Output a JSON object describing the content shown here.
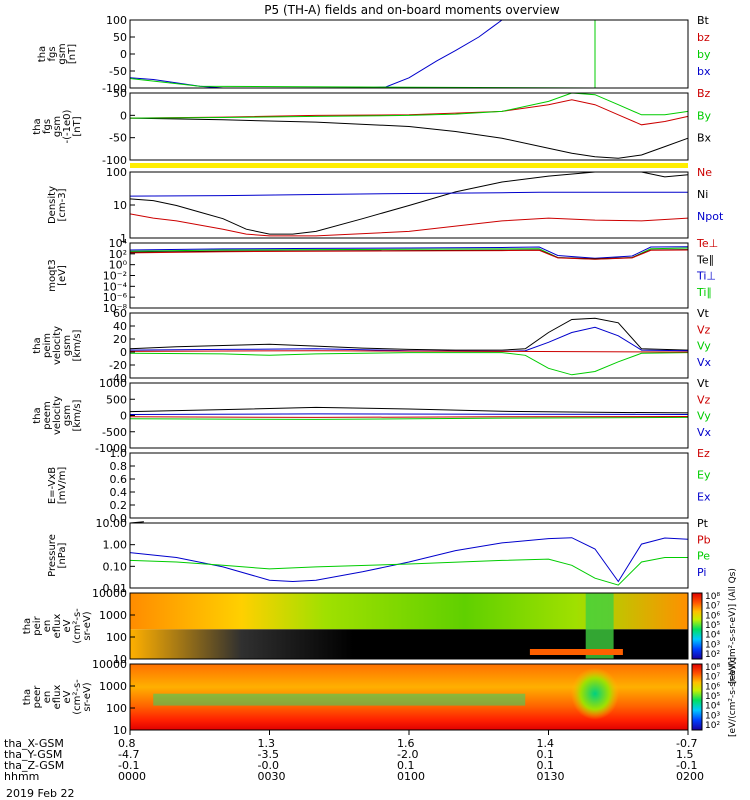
{
  "title": "P5 (TH-A) fields and on-board moments overview",
  "date_label": "2019 Feb 22",
  "colors": {
    "black": "#000000",
    "red": "#cc0000",
    "green": "#00cc00",
    "blue": "#0000cc",
    "yellow": "#ffee00"
  },
  "chart_data": [
    {
      "type": "line",
      "ylabel": [
        "tha",
        "fgs",
        "gsm",
        "[nT]"
      ],
      "ylim": [
        -100,
        100
      ],
      "yticks": [
        "100",
        "50",
        "0",
        "-50",
        "-100"
      ],
      "legend": [
        {
          "name": "Bt",
          "color": "black"
        },
        {
          "name": "bz",
          "color": "red"
        },
        {
          "name": "by",
          "color": "green"
        },
        {
          "name": "bx",
          "color": "blue"
        }
      ],
      "series": [
        {
          "name": "bx",
          "color": "blue",
          "x": [
            0,
            5,
            15,
            20,
            30,
            40,
            50,
            55,
            60,
            66,
            70,
            75,
            78,
            80,
            85,
            90,
            100,
            106,
            110,
            113
          ],
          "y": [
            -70,
            -75,
            -95,
            -100,
            -100,
            -100,
            -100,
            -97,
            -70,
            -20,
            10,
            50,
            80,
            100,
            100,
            100,
            100,
            100,
            100,
            100
          ]
        },
        {
          "name": "by",
          "color": "green",
          "x": [
            0,
            15,
            100,
            100,
            120,
            120
          ],
          "y": [
            -72,
            -95,
            -100,
            100,
            100,
            100
          ]
        },
        {
          "name": "Bt",
          "color": "black",
          "x": [
            0,
            120
          ],
          "y": [
            -100,
            -100
          ]
        }
      ]
    },
    {
      "type": "line",
      "ylabel": [
        "tha",
        "fgs",
        "gsm",
        "-(-1e0)",
        "[nT]"
      ],
      "ylim": [
        -125,
        75
      ],
      "yticks": [
        "50",
        "0",
        "-50",
        "-100"
      ],
      "legend": [
        {
          "name": "Bz",
          "color": "red"
        },
        {
          "name": "By",
          "color": "green"
        },
        {
          "name": "Bx",
          "color": "black"
        }
      ],
      "series": [
        {
          "name": "Bx",
          "color": "black",
          "x": [
            0,
            20,
            40,
            60,
            70,
            80,
            90,
            95,
            100,
            105,
            110,
            115,
            120
          ],
          "y": [
            0,
            -5,
            -12,
            -25,
            -40,
            -60,
            -90,
            -105,
            -115,
            -120,
            -110,
            -85,
            -60
          ]
        },
        {
          "name": "Bz",
          "color": "red",
          "x": [
            0,
            20,
            40,
            60,
            70,
            80,
            90,
            95,
            100,
            105,
            110,
            115,
            120
          ],
          "y": [
            0,
            3,
            8,
            10,
            15,
            20,
            40,
            55,
            40,
            10,
            -20,
            -10,
            5
          ]
        },
        {
          "name": "By",
          "color": "green",
          "x": [
            0,
            20,
            40,
            60,
            70,
            80,
            90,
            95,
            100,
            105,
            110,
            115,
            120
          ],
          "y": [
            0,
            2,
            5,
            8,
            12,
            20,
            50,
            75,
            70,
            40,
            10,
            10,
            20
          ]
        }
      ]
    },
    {
      "type": "line",
      "ylabel": [
        "Density",
        "[cm-3]"
      ],
      "yscale": "log",
      "ylim": [
        0.2,
        200
      ],
      "yticks": [
        "100",
        "10",
        "1"
      ],
      "legend": [
        {
          "name": "Ne",
          "color": "red"
        },
        {
          "name": "Ni",
          "color": "black"
        },
        {
          "name": "Npot",
          "color": "blue"
        }
      ],
      "series": [
        {
          "name": "Ni",
          "color": "black",
          "x": [
            0,
            5,
            10,
            15,
            20,
            25,
            30,
            35,
            40,
            50,
            60,
            70,
            80,
            90,
            100,
            110,
            115,
            120
          ],
          "y": [
            12,
            10,
            6,
            3,
            1.5,
            0.5,
            0.3,
            0.3,
            0.4,
            1.5,
            6,
            25,
            70,
            130,
            200,
            200,
            120,
            150
          ]
        },
        {
          "name": "Ne",
          "color": "red",
          "x": [
            0,
            5,
            10,
            20,
            25,
            30,
            35,
            40,
            60,
            80,
            90,
            100,
            110,
            120
          ],
          "y": [
            2.5,
            1.6,
            1.2,
            0.5,
            0.3,
            0.25,
            0.25,
            0.25,
            0.4,
            1.2,
            1.6,
            1.3,
            1.2,
            1.6
          ]
        },
        {
          "name": "Npot",
          "color": "blue",
          "x": [
            0,
            20,
            40,
            60,
            80,
            88,
            88,
            95,
            120
          ],
          "y": [
            16,
            17,
            19,
            21,
            23,
            24,
            24,
            24,
            24
          ]
        }
      ]
    },
    {
      "type": "line",
      "ylabel": [
        "moqt3",
        "[eV]"
      ],
      "yscale": "log",
      "ylim": [
        1e-08,
        10000.0
      ],
      "yticks": [
        "10⁴",
        "10²",
        "10⁰",
        "10⁻²",
        "10⁻⁴",
        "10⁻⁶",
        "10⁻⁸"
      ],
      "legend": [
        {
          "name": "Te⊥",
          "color": "red"
        },
        {
          "name": "Te∥",
          "color": "black"
        },
        {
          "name": "Ti⊥",
          "color": "blue"
        },
        {
          "name": "Ti∥",
          "color": "green"
        }
      ],
      "series": [
        {
          "name": "Ti∥",
          "color": "green",
          "x": [
            0,
            20,
            40,
            60,
            80,
            88,
            92,
            100,
            108,
            112,
            120
          ],
          "y": [
            300,
            500,
            600,
            700,
            800,
            900,
            20,
            10,
            20,
            900,
            1200
          ]
        },
        {
          "name": "Ti⊥",
          "color": "blue",
          "x": [
            0,
            20,
            40,
            60,
            80,
            88,
            92,
            100,
            108,
            112,
            120
          ],
          "y": [
            500,
            800,
            1000,
            1200,
            1500,
            1800,
            50,
            15,
            40,
            1800,
            2000
          ]
        },
        {
          "name": "Te∥",
          "color": "black",
          "x": [
            0,
            20,
            40,
            60,
            80,
            88,
            92,
            100,
            108,
            112,
            120
          ],
          "y": [
            200,
            300,
            350,
            400,
            450,
            500,
            20,
            12,
            20,
            500,
            600
          ]
        },
        {
          "name": "Te⊥",
          "color": "red",
          "x": [
            0,
            20,
            40,
            60,
            80,
            88,
            92,
            100,
            108,
            112,
            120
          ],
          "y": [
            150,
            250,
            300,
            350,
            400,
            450,
            18,
            10,
            18,
            450,
            500
          ]
        }
      ]
    },
    {
      "type": "line",
      "ylabel": [
        "tha",
        "peim",
        "velocity",
        "gsm",
        "[km/s]"
      ],
      "ylim": [
        -40,
        60
      ],
      "yticks": [
        "60",
        "40",
        "20",
        "0",
        "-20",
        "-40"
      ],
      "legend": [
        {
          "name": "Vt",
          "color": "black"
        },
        {
          "name": "Vz",
          "color": "red"
        },
        {
          "name": "Vy",
          "color": "green"
        },
        {
          "name": "Vx",
          "color": "blue"
        }
      ],
      "series": [
        {
          "name": "Vt",
          "color": "black",
          "x": [
            0,
            10,
            20,
            30,
            40,
            50,
            60,
            70,
            80,
            85,
            90,
            95,
            100,
            105,
            110,
            120
          ],
          "y": [
            5,
            8,
            10,
            12,
            9,
            6,
            4,
            3,
            3,
            5,
            30,
            50,
            52,
            45,
            5,
            3
          ]
        },
        {
          "name": "Vx",
          "color": "blue",
          "x": [
            0,
            20,
            40,
            60,
            80,
            85,
            90,
            95,
            100,
            105,
            110,
            120
          ],
          "y": [
            3,
            4,
            5,
            2,
            1,
            2,
            15,
            30,
            38,
            25,
            3,
            2
          ]
        },
        {
          "name": "Vy",
          "color": "green",
          "x": [
            0,
            20,
            30,
            40,
            60,
            80,
            85,
            90,
            95,
            100,
            105,
            110,
            120
          ],
          "y": [
            -2,
            -3,
            -5,
            -3,
            -1,
            -1,
            -5,
            -25,
            -35,
            -30,
            -15,
            -2,
            -1
          ]
        },
        {
          "name": "Vz",
          "color": "red",
          "x": [
            0,
            40,
            80,
            120
          ],
          "y": [
            1,
            2,
            1,
            0
          ]
        }
      ]
    },
    {
      "type": "line",
      "ylabel": [
        "tha",
        "peem",
        "velocity",
        "gsm",
        "[km/s]"
      ],
      "ylim": [
        -1000,
        1000
      ],
      "yticks": [
        "1000",
        "500",
        "0",
        "-500",
        "-1000"
      ],
      "legend": [
        {
          "name": "Vt",
          "color": "black"
        },
        {
          "name": "Vz",
          "color": "red"
        },
        {
          "name": "Vy",
          "color": "green"
        },
        {
          "name": "Vx",
          "color": "blue"
        }
      ],
      "series": [
        {
          "name": "Vt",
          "color": "black",
          "x": [
            0,
            20,
            40,
            60,
            80,
            100,
            120
          ],
          "y": [
            120,
            180,
            250,
            200,
            130,
            100,
            80
          ]
        },
        {
          "name": "Vx",
          "color": "blue",
          "x": [
            0,
            40,
            80,
            120
          ],
          "y": [
            30,
            50,
            40,
            30
          ]
        },
        {
          "name": "Vy",
          "color": "green",
          "x": [
            0,
            40,
            80,
            120
          ],
          "y": [
            -100,
            -120,
            -80,
            -60
          ]
        },
        {
          "name": "Vz",
          "color": "red",
          "x": [
            0,
            40,
            80,
            120
          ],
          "y": [
            -40,
            -60,
            -40,
            -30
          ]
        }
      ]
    },
    {
      "type": "line",
      "ylabel": [
        "E=-VxB",
        "[mV/m]"
      ],
      "ylim": [
        0,
        1
      ],
      "yticks": [
        "1.0",
        "0.8",
        "0.6",
        "0.4",
        "0.2",
        "0.0"
      ],
      "legend": [
        {
          "name": "Ez",
          "color": "red"
        },
        {
          "name": "Ey",
          "color": "green"
        },
        {
          "name": "Ex",
          "color": "blue"
        }
      ],
      "series": []
    },
    {
      "type": "line",
      "ylabel": [
        "Pressure",
        "[nPa]"
      ],
      "yscale": "log",
      "ylim": [
        0.002,
        20
      ],
      "yticks": [
        "10.00",
        "1.00",
        "0.10",
        "0.01"
      ],
      "legend": [
        {
          "name": "Pt",
          "color": "black"
        },
        {
          "name": "Pb",
          "color": "red"
        },
        {
          "name": "Pe",
          "color": "green"
        },
        {
          "name": "Pi",
          "color": "blue"
        }
      ],
      "series": [
        {
          "name": "Pi",
          "color": "blue",
          "x": [
            0,
            10,
            20,
            30,
            35,
            40,
            50,
            60,
            70,
            80,
            90,
            95,
            100,
            105,
            110,
            115,
            120
          ],
          "y": [
            0.3,
            0.15,
            0.04,
            0.006,
            0.005,
            0.006,
            0.02,
            0.08,
            0.4,
            1.2,
            2.2,
            2.5,
            0.5,
            0.005,
            1,
            2.4,
            2
          ]
        },
        {
          "name": "Pe",
          "color": "green",
          "x": [
            0,
            10,
            20,
            30,
            40,
            60,
            80,
            90,
            95,
            100,
            105,
            110,
            115,
            120
          ],
          "y": [
            0.1,
            0.08,
            0.05,
            0.03,
            0.04,
            0.06,
            0.1,
            0.12,
            0.05,
            0.008,
            0.003,
            0.08,
            0.15,
            0.15
          ]
        },
        {
          "name": "Pt",
          "color": "black",
          "x": [
            0,
            3
          ],
          "y": [
            20,
            30
          ]
        }
      ]
    },
    {
      "type": "heatmap",
      "ylabel": [
        "tha",
        "peir",
        "en",
        "eflux",
        "eV",
        "(cm²-s-",
        "sr-eV)"
      ],
      "yscale": "log",
      "ylim": [
        5,
        30000
      ],
      "yticks": [
        "10000",
        "1000",
        "100",
        "10"
      ],
      "colorbar_label": "[eV/(cm²-s-sr-eV)] (All Qs)",
      "colorbar_ticks": [
        "10⁸",
        "10⁷",
        "10⁶",
        "10⁵",
        "10⁴",
        "10³",
        "10²"
      ]
    },
    {
      "type": "heatmap",
      "ylabel": [
        "tha",
        "peer",
        "en",
        "eflux",
        "eV",
        "(cm²-s-",
        "sr-eV)"
      ],
      "yscale": "log",
      "ylim": [
        5,
        30000
      ],
      "yticks": [
        "10000",
        "1000",
        "100",
        "10"
      ],
      "colorbar_label": "[eV/(cm²-s-sr-eV)]",
      "colorbar_ticks": [
        "10⁸",
        "10⁷",
        "10⁶",
        "10⁵",
        "10⁴",
        "10³",
        "10²"
      ]
    }
  ],
  "x_axis": {
    "row_labels": [
      "tha_X-GSM",
      "tha_Y-GSM",
      "tha_Z-GSM",
      "hhmm"
    ],
    "columns": [
      {
        "x": 0,
        "X": "0.8",
        "Y": "-4.7",
        "Z": "-0.1",
        "time": "0000"
      },
      {
        "x": 30,
        "X": "1.3",
        "Y": "-3.5",
        "Z": "-0.0",
        "time": "0030"
      },
      {
        "x": 60,
        "X": "1.6",
        "Y": "-2.0",
        "Z": "0.1",
        "time": "0100"
      },
      {
        "x": 90,
        "X": "1.4",
        "Y": "0.1",
        "Z": "0.1",
        "time": "0130"
      },
      {
        "x": 120,
        "X": "-0.7",
        "Y": "1.5",
        "Z": "-0.1",
        "time": "0200"
      }
    ]
  }
}
